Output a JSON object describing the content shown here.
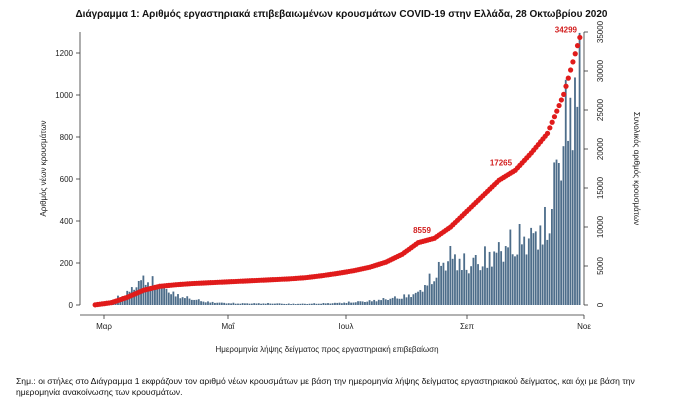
{
  "title": "Διάγραμμα 1: Αριθμός εργαστηριακά επιβεβαιωμένων κρουσμάτων COVID-19 στην Ελλάδα, 28 Οκτωβρίου 2020",
  "note": "Σημ.: οι στήλες στο Διάγραμμα 1 εκφράζουν τον αριθμό νέων κρουσμάτων με βάση την ημερομηνία λήψης δείγματος εργαστηριακού δείγματος, και όχι με βάση την ημερομηνία ανακοίνωσης των κρουσμάτων.",
  "colors": {
    "bars": "#4d6d8a",
    "cumulative": "#e01b1b"
  },
  "chart_data": {
    "type": "bar",
    "title": "Διάγραμμα 1: Αριθμός εργαστηριακά επιβεβαιωμένων κρουσμάτων COVID-19 στην Ελλάδα, 28 Οκτωβρίου 2020",
    "xlabel": "Ημερομηνία λήψης δείγματος προς εργαστηριακή επιβεβαίωση",
    "ylabel": "Αριθμός νέων κρουσμάτων",
    "y2label": "Συνολικός αριθμός κρουσμάτων",
    "ylim": [
      0,
      1300
    ],
    "y2lim": [
      0,
      35000
    ],
    "yticks": [
      0,
      200,
      400,
      600,
      800,
      1000,
      1200
    ],
    "y2ticks": [
      0,
      5000,
      10000,
      15000,
      20000,
      25000,
      30000,
      35000
    ],
    "xticks": [
      "Μαρ",
      "Μαΐ",
      "Ιουλ",
      "Σεπ",
      "Νοε"
    ],
    "grid": false,
    "series": [
      {
        "name": "",
        "kind": "bar",
        "weekly_values": [
          5,
          20,
          60,
          130,
          100,
          50,
          30,
          15,
          10,
          8,
          8,
          8,
          6,
          6,
          8,
          10,
          15,
          20,
          30,
          40,
          60,
          150,
          250,
          200,
          230,
          270,
          320,
          340,
          400,
          880,
          1130
        ]
      },
      {
        "name": "",
        "kind": "line",
        "weekly_cumulative": [
          20,
          300,
          1000,
          1900,
          2400,
          2600,
          2750,
          2850,
          2950,
          3050,
          3150,
          3250,
          3350,
          3500,
          3750,
          4050,
          4400,
          4850,
          5500,
          6500,
          8000,
          8559,
          10000,
          12000,
          14000,
          16000,
          17265,
          19500,
          22000,
          27000,
          34299
        ]
      }
    ],
    "annotations": [
      {
        "text": "8559",
        "x_week": 21,
        "y2": 8559
      },
      {
        "text": "17265",
        "x_week": 26,
        "y2": 17265
      },
      {
        "text": "34299",
        "x_week": 30,
        "y2": 34299
      }
    ]
  }
}
